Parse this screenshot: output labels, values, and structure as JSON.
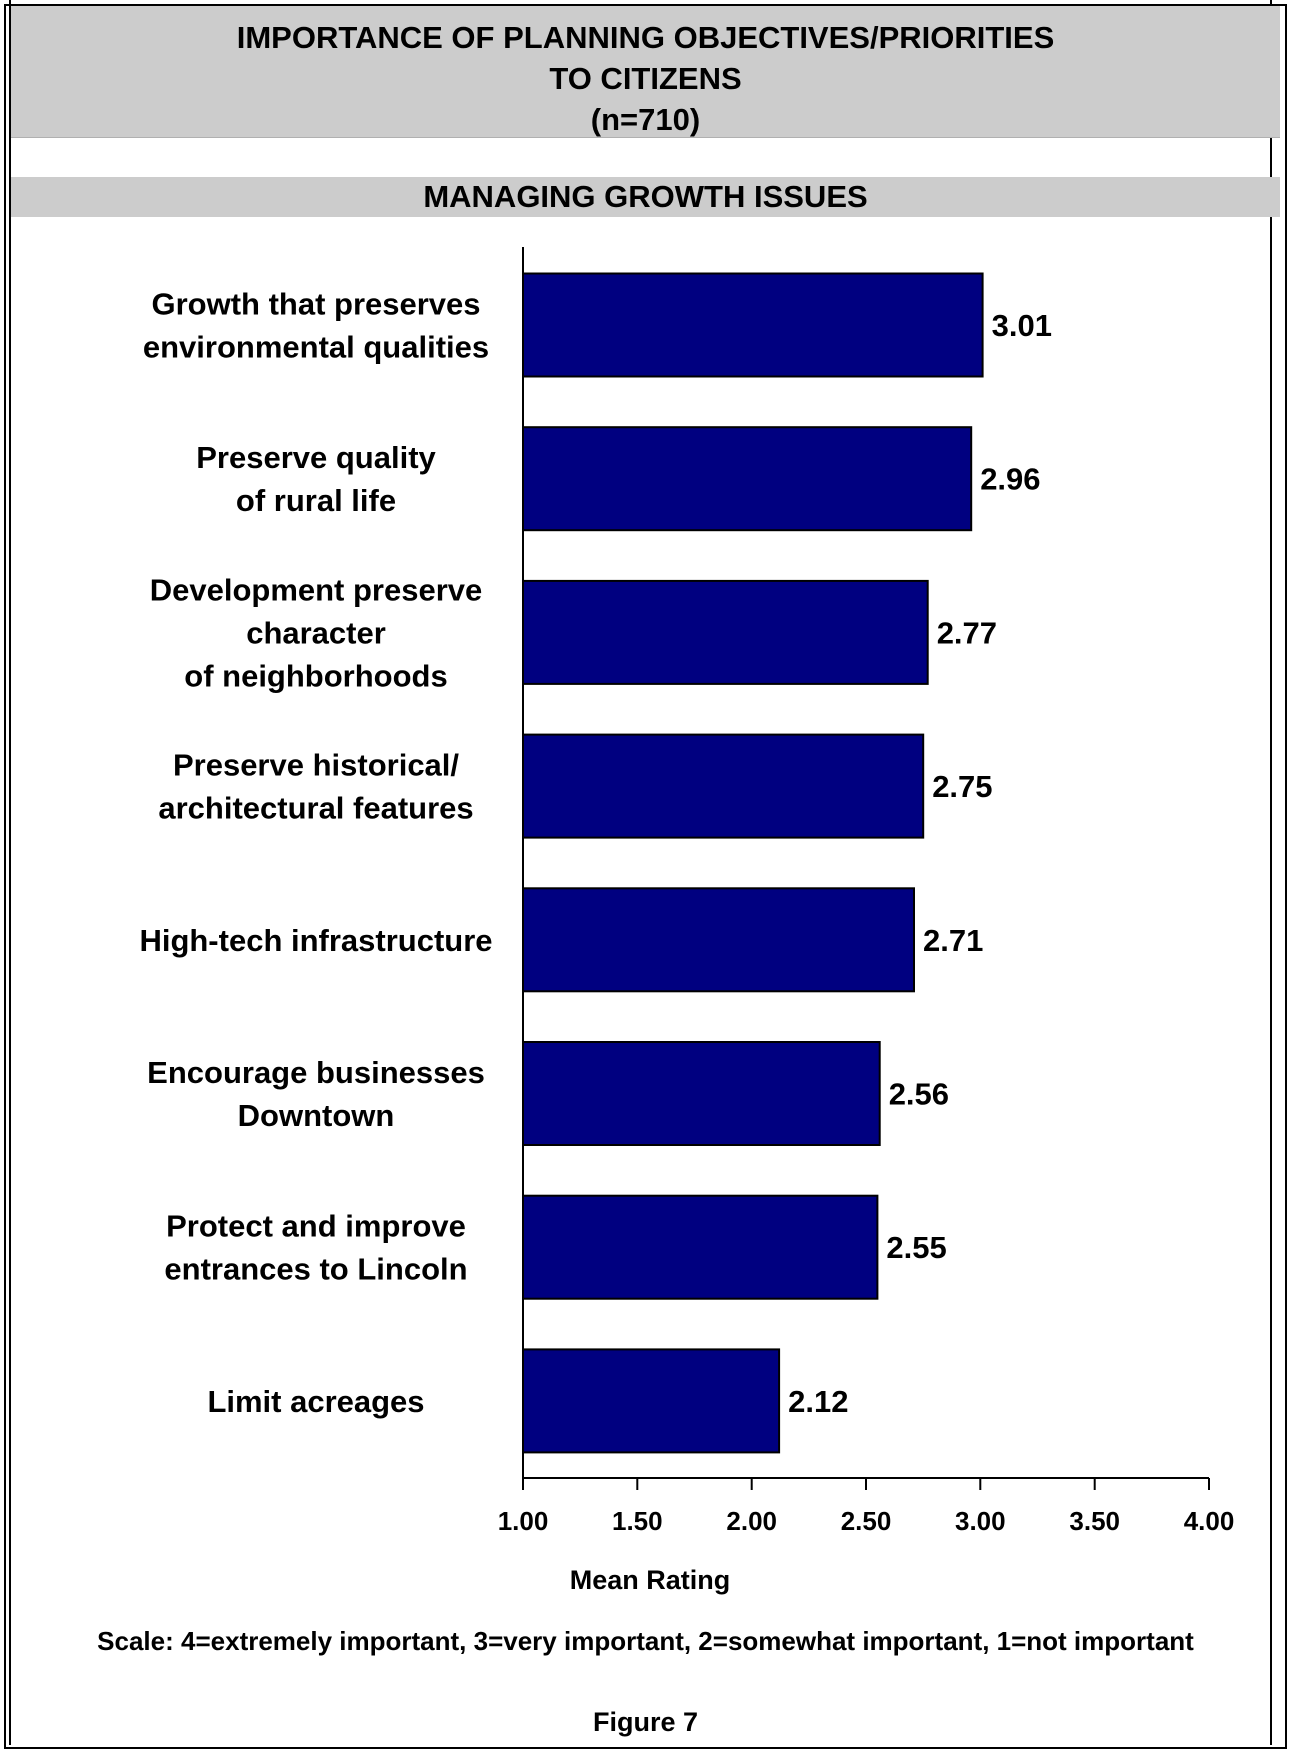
{
  "header": {
    "title_line1": "IMPORTANCE OF PLANNING OBJECTIVES/PRIORITIES",
    "title_line2": "TO CITIZENS",
    "title_line3": "(n=710)"
  },
  "section": {
    "title": "MANAGING GROWTH ISSUES"
  },
  "colors": {
    "bar_fill": "#000080",
    "band_gray": "#cccccc"
  },
  "chart_data": {
    "type": "bar",
    "orientation": "horizontal",
    "categories": [
      [
        "Growth that preserves",
        "environmental qualities"
      ],
      [
        "Preserve quality",
        "of rural life"
      ],
      [
        "Development preserve",
        "character",
        "of neighborhoods"
      ],
      [
        "Preserve historical/",
        "architectural features"
      ],
      [
        "High-tech infrastructure"
      ],
      [
        "Encourage businesses",
        "Downtown"
      ],
      [
        "Protect and improve",
        "entrances to Lincoln"
      ],
      [
        "Limit acreages"
      ]
    ],
    "values": [
      3.01,
      2.96,
      2.77,
      2.75,
      2.71,
      2.56,
      2.55,
      2.12
    ],
    "data_labels": [
      "3.01",
      "2.96",
      "2.77",
      "2.75",
      "2.71",
      "2.56",
      "2.55",
      "2.12"
    ],
    "xlim": [
      1.0,
      4.0
    ],
    "xticks": [
      1.0,
      1.5,
      2.0,
      2.5,
      3.0,
      3.5,
      4.0
    ],
    "xtick_labels": [
      "1.00",
      "1.50",
      "2.00",
      "2.50",
      "3.00",
      "3.50",
      "4.00"
    ],
    "xlabel": "Mean Rating",
    "grid": false
  },
  "footer": {
    "scale_note": "Scale: 4=extremely important, 3=very important, 2=somewhat important, 1=not important",
    "figure_label": "Figure 7"
  }
}
